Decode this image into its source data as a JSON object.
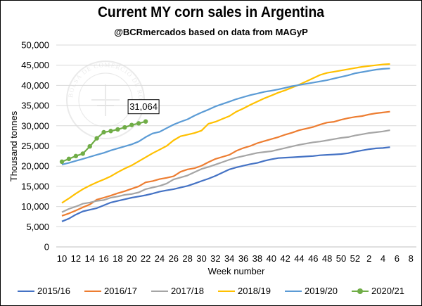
{
  "title": "Current MY corn sales in Argentina",
  "subtitle": "@BCRmercados based on data from MAGyP",
  "watermark_text": "BOLSA DE COMERCIO DE ROSARIO",
  "chart_data": {
    "type": "line",
    "xlabel": "Week number",
    "ylabel": "Thousand tonnes",
    "ylim": [
      0,
      50000
    ],
    "y_ticks": [
      "0",
      "5,000",
      "10,000",
      "15,000",
      "20,000",
      "25,000",
      "30,000",
      "35,000",
      "40,000",
      "45,000",
      "50,000"
    ],
    "x_tick_labels": [
      "10",
      "12",
      "14",
      "16",
      "18",
      "20",
      "22",
      "24",
      "26",
      "28",
      "30",
      "32",
      "34",
      "36",
      "38",
      "40",
      "42",
      "44",
      "46",
      "48",
      "50",
      "52",
      "2",
      "4",
      "6",
      "8"
    ],
    "grid": "horizontal",
    "legend_position": "bottom",
    "annotation": {
      "text": "31,064",
      "series": "2020/21",
      "week_index": 12
    },
    "series": [
      {
        "name": "2015/16",
        "color": "#4472C4",
        "marker": false,
        "values": [
          6300,
          7000,
          8000,
          8800,
          9200,
          9600,
          10300,
          11000,
          11400,
          11800,
          12200,
          12500,
          12800,
          13200,
          13700,
          14000,
          14300,
          14700,
          15100,
          15700,
          16300,
          16900,
          17600,
          18400,
          19200,
          19700,
          20100,
          20500,
          20800,
          21300,
          21700,
          22000,
          22100,
          22200,
          22300,
          22400,
          22500,
          22700,
          22800,
          22900,
          23000,
          23200,
          23600,
          23900,
          24200,
          24400,
          24500,
          24700
        ]
      },
      {
        "name": "2016/17",
        "color": "#ED7D31",
        "marker": false,
        "values": [
          7700,
          8300,
          9000,
          9800,
          10500,
          11700,
          12200,
          12700,
          13300,
          13800,
          14400,
          15000,
          16000,
          16300,
          16800,
          17100,
          17500,
          18600,
          19200,
          19500,
          20100,
          21000,
          21800,
          22300,
          22800,
          23800,
          24500,
          25000,
          25700,
          26200,
          26700,
          27200,
          27800,
          28300,
          28900,
          29300,
          29700,
          30300,
          30800,
          31000,
          31500,
          31900,
          32200,
          32400,
          32800,
          33100,
          33300,
          33500
        ]
      },
      {
        "name": "2017/18",
        "color": "#A5A5A5",
        "marker": false,
        "values": [
          8600,
          9400,
          10000,
          10700,
          11000,
          11400,
          11600,
          12200,
          12500,
          12900,
          13100,
          13500,
          14300,
          14700,
          15100,
          15700,
          16700,
          17200,
          17700,
          18500,
          19300,
          19800,
          20400,
          21000,
          21600,
          22100,
          22500,
          22900,
          23300,
          23500,
          23700,
          24100,
          24500,
          24900,
          25300,
          25600,
          25900,
          26100,
          26400,
          26700,
          27000,
          27200,
          27600,
          27900,
          28200,
          28400,
          28600,
          28900
        ]
      },
      {
        "name": "2018/19",
        "color": "#FFC000",
        "marker": false,
        "values": [
          10900,
          12000,
          13200,
          14300,
          15200,
          16000,
          16700,
          17500,
          18500,
          19400,
          20200,
          21200,
          22200,
          23200,
          24100,
          25000,
          26400,
          27400,
          27800,
          28200,
          28800,
          30500,
          31000,
          31700,
          32400,
          33500,
          34300,
          35200,
          36000,
          36800,
          37500,
          38200,
          38800,
          39500,
          40200,
          41000,
          41800,
          42600,
          43100,
          43400,
          43700,
          44000,
          44300,
          44600,
          44800,
          45000,
          45200,
          45300
        ]
      },
      {
        "name": "2019/20",
        "color": "#5B9BD5",
        "marker": false,
        "values": [
          20400,
          20800,
          21300,
          21800,
          22300,
          22800,
          23300,
          23900,
          24400,
          24900,
          25400,
          26100,
          27200,
          28100,
          28500,
          29400,
          30300,
          31000,
          31600,
          32500,
          33300,
          34000,
          34800,
          35400,
          36000,
          36600,
          37100,
          37600,
          38000,
          38400,
          38700,
          39000,
          39400,
          39800,
          40100,
          40400,
          40700,
          41000,
          41300,
          41700,
          42100,
          42500,
          43000,
          43300,
          43600,
          43900,
          44100,
          44200
        ]
      },
      {
        "name": "2020/21",
        "color": "#70AD47",
        "marker": true,
        "values": [
          21100,
          21800,
          22500,
          23100,
          24900,
          26900,
          28400,
          28700,
          29100,
          29600,
          30200,
          30600,
          31064
        ]
      }
    ]
  }
}
